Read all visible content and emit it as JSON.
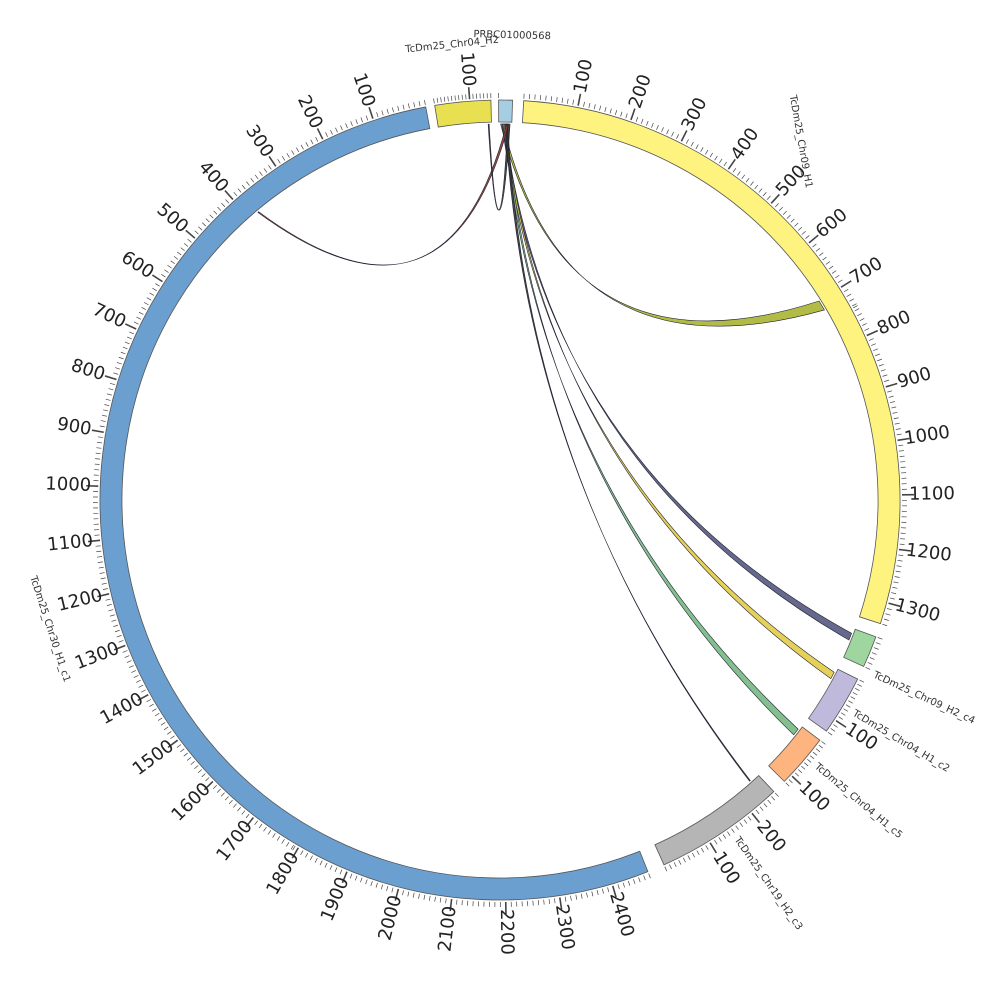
{
  "segments": [
    {
      "id": "prbc",
      "name": "PRBC01000568",
      "length": 24,
      "color": "#a6cee3",
      "ticks": [],
      "link": {
        "target": "none"
      }
    },
    {
      "id": "chr09_h1",
      "name": "TcDm25_Chr09_H1",
      "length": 1340,
      "color": "#fff380",
      "ticks": [
        "100",
        "200",
        "300",
        "400",
        "500",
        "600",
        "700",
        "800",
        "900",
        "1000",
        "1100",
        "1200",
        "1300"
      ]
    },
    {
      "id": "chr09_h2_c4",
      "name": "TcDm25_Chr09_H2_c4",
      "length": 60,
      "color": "#9fd69f",
      "ticks": []
    },
    {
      "id": "chr04_h1_c",
      "name": "TcDm25_Chr04_H1_c2",
      "length": 130,
      "color": "#bfbadb",
      "ticks": [
        "100"
      ]
    },
    {
      "id": "chr04_h2_c",
      "name": "TcDm25_Chr04_H1_c5",
      "length": 120,
      "color": "#fdb47f",
      "ticks": [
        "100"
      ]
    },
    {
      "id": "chr19_h2_c3",
      "name": "TcDm25_Chr19_H2_c3",
      "length": 260,
      "color": "#b5b5b5",
      "ticks": [
        "100",
        "200"
      ]
    },
    {
      "id": "chr30_h1_c1",
      "name": "TcDm25_Chr30_H1_c1",
      "length": 2470,
      "color": "#6b9fcf",
      "ticks": [
        "100",
        "200",
        "300",
        "400",
        "500",
        "600",
        "700",
        "800",
        "900",
        "1000",
        "1100",
        "1200",
        "1300",
        "1400",
        "1500",
        "1600",
        "1700",
        "1800",
        "1900",
        "2000",
        "2100",
        "2200",
        "2300",
        "2400"
      ]
    },
    {
      "id": "chr04_h2",
      "name": "TcDm25_Chr04_H2",
      "length": 160,
      "color": "#e8e050",
      "ticks": [
        "100"
      ]
    }
  ],
  "links": [
    {
      "to_segment": "chr09_h1",
      "color": "#a9b432",
      "target_pos": 700
    },
    {
      "to_segment": "chr09_h2_c4",
      "color": "#55587f",
      "target_pos": 10
    },
    {
      "to_segment": "chr04_h1_c",
      "color": "#e2cc48",
      "target_pos": 10
    },
    {
      "to_segment": "chr04_h2_c",
      "color": "#77b884",
      "target_pos": 10
    },
    {
      "to_segment": "chr19_h2_c3",
      "color": "#333333",
      "target_pos": 240
    },
    {
      "to_segment": "chr30_h1_c1",
      "color": "#8b3a2a",
      "target_pos": 380
    },
    {
      "to_segment": "chr04_h2",
      "color": "#333333",
      "target_pos": 150
    }
  ]
}
